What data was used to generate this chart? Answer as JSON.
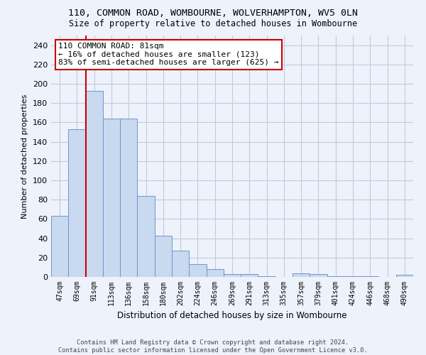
{
  "title_line1": "110, COMMON ROAD, WOMBOURNE, WOLVERHAMPTON, WV5 0LN",
  "title_line2": "Size of property relative to detached houses in Wombourne",
  "xlabel": "Distribution of detached houses by size in Wombourne",
  "ylabel": "Number of detached properties",
  "categories": [
    "47sqm",
    "69sqm",
    "91sqm",
    "113sqm",
    "136sqm",
    "158sqm",
    "180sqm",
    "202sqm",
    "224sqm",
    "246sqm",
    "269sqm",
    "291sqm",
    "313sqm",
    "335sqm",
    "357sqm",
    "379sqm",
    "401sqm",
    "424sqm",
    "446sqm",
    "468sqm",
    "490sqm"
  ],
  "values": [
    63,
    153,
    193,
    164,
    164,
    84,
    43,
    27,
    13,
    8,
    3,
    3,
    1,
    0,
    4,
    3,
    1,
    1,
    1,
    0,
    2
  ],
  "bar_color": "#c8d9f0",
  "bar_edge_color": "#7096c8",
  "grid_color": "#c0ccdd",
  "background_color": "#edf2fb",
  "red_line_x": 1.5,
  "annotation_title": "110 COMMON ROAD: 81sqm",
  "annotation_line1": "← 16% of detached houses are smaller (123)",
  "annotation_line2": "83% of semi-detached houses are larger (625) →",
  "annotation_box_color": "#ffffff",
  "annotation_border_color": "#cc0000",
  "footer_line1": "Contains HM Land Registry data © Crown copyright and database right 2024.",
  "footer_line2": "Contains public sector information licensed under the Open Government Licence v3.0.",
  "ylim": [
    0,
    250
  ],
  "yticks": [
    0,
    20,
    40,
    60,
    80,
    100,
    120,
    140,
    160,
    180,
    200,
    220,
    240
  ]
}
